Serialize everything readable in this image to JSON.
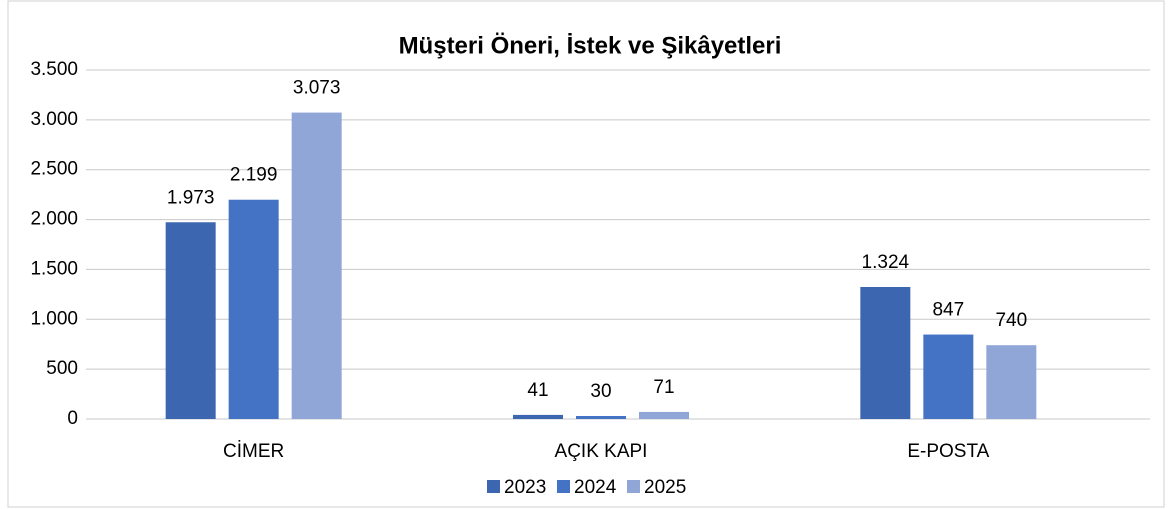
{
  "chart_data": {
    "type": "bar",
    "title": "Müşteri Öneri, İstek ve Şikâyetleri",
    "categories": [
      "CİMER",
      "AÇIK KAPI",
      "E-POSTA"
    ],
    "series": [
      {
        "name": "2023",
        "color": "#3c66b0",
        "values": [
          1973,
          41,
          1324
        ],
        "value_labels": [
          "1.973",
          "41",
          "1.324"
        ]
      },
      {
        "name": "2024",
        "color": "#4472c4",
        "values": [
          2199,
          30,
          847
        ],
        "value_labels": [
          "2.199",
          "30",
          "847"
        ]
      },
      {
        "name": "2025",
        "color": "#8fa6d7",
        "values": [
          3073,
          71,
          740
        ],
        "value_labels": [
          "3.073",
          "71",
          "740"
        ]
      }
    ],
    "ylim": [
      0,
      3500
    ],
    "yticks": [
      0,
      500,
      {
        "value": 1000,
        "label": "1.000"
      },
      {
        "value": 1500,
        "label": "1.500"
      },
      {
        "value": 2000,
        "label": "2.000"
      },
      {
        "value": 2500,
        "label": "2.500"
      },
      {
        "value": 3000,
        "label": "3.000"
      },
      {
        "value": 3500,
        "label": "3.500"
      }
    ],
    "grid": true,
    "legend": "bottom"
  }
}
